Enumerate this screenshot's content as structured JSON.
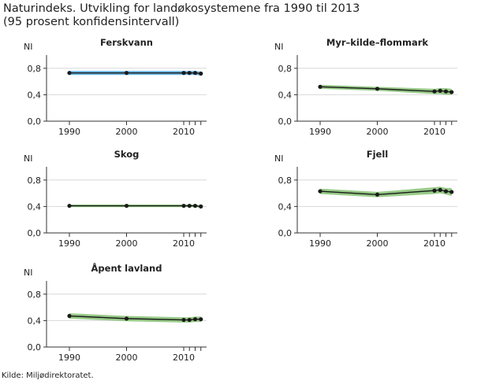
{
  "header": {
    "title_line1": "Naturindeks. Utvikling for landøkosystemene fra 1990 til 2013",
    "title_line2": "(95 prosent konfidensintervall)"
  },
  "footer": {
    "source": "Kilde: Miljødirektoratet."
  },
  "colors": {
    "ferskvann_band": "#5aaee0",
    "land_band": "#8cc47a",
    "line": "#1a1a1a",
    "grid": "#d9d9d9",
    "axis": "#333333"
  },
  "chart_data": [
    {
      "type": "line",
      "title": "Ferskvann",
      "ylabel": "NI",
      "ylim": [
        0,
        1
      ],
      "xlim": [
        1986,
        2014
      ],
      "yticks": [
        "0,0",
        "0,4",
        "0,8"
      ],
      "yticks_values": [
        0,
        0.4,
        0.8
      ],
      "xticks": [
        "1990",
        "2000",
        "2010"
      ],
      "xticks_values": [
        1990,
        2000,
        2010
      ],
      "x": [
        1990,
        2000,
        2010,
        2011,
        2012,
        2013
      ],
      "series": [
        {
          "values": [
            0.73,
            0.73,
            0.73,
            0.73,
            0.73,
            0.72
          ]
        }
      ],
      "ci_lower": [
        0.7,
        0.7,
        0.7,
        0.7,
        0.7,
        0.69
      ],
      "ci_upper": [
        0.76,
        0.76,
        0.76,
        0.76,
        0.76,
        0.75
      ],
      "band_color": "#5aaee0"
    },
    {
      "type": "line",
      "title": "Myr–kilde–flommark",
      "ylabel": "NI",
      "ylim": [
        0,
        1
      ],
      "xlim": [
        1986,
        2014
      ],
      "yticks": [
        "0,0",
        "0,4",
        "0,8"
      ],
      "yticks_values": [
        0,
        0.4,
        0.8
      ],
      "xticks": [
        "1990",
        "2000",
        "2010"
      ],
      "xticks_values": [
        1990,
        2000,
        2010
      ],
      "x": [
        1990,
        2000,
        2010,
        2011,
        2012,
        2013
      ],
      "series": [
        {
          "values": [
            0.52,
            0.49,
            0.45,
            0.46,
            0.45,
            0.44
          ]
        }
      ],
      "ci_lower": [
        0.49,
        0.46,
        0.41,
        0.41,
        0.4,
        0.4
      ],
      "ci_upper": [
        0.55,
        0.52,
        0.49,
        0.5,
        0.5,
        0.49
      ],
      "band_color": "#8cc47a"
    },
    {
      "type": "line",
      "title": "Skog",
      "ylabel": "NI",
      "ylim": [
        0,
        1
      ],
      "xlim": [
        1986,
        2014
      ],
      "yticks": [
        "0,0",
        "0,4",
        "0,8"
      ],
      "yticks_values": [
        0,
        0.4,
        0.8
      ],
      "xticks": [
        "1990",
        "2000",
        "2010"
      ],
      "xticks_values": [
        1990,
        2000,
        2010
      ],
      "x": [
        1990,
        2000,
        2010,
        2011,
        2012,
        2013
      ],
      "series": [
        {
          "values": [
            0.41,
            0.41,
            0.41,
            0.41,
            0.41,
            0.4
          ]
        }
      ],
      "ci_lower": [
        0.39,
        0.39,
        0.39,
        0.39,
        0.39,
        0.38
      ],
      "ci_upper": [
        0.43,
        0.43,
        0.43,
        0.43,
        0.43,
        0.42
      ],
      "band_color": "#8cc47a"
    },
    {
      "type": "line",
      "title": "Fjell",
      "ylabel": "NI",
      "ylim": [
        0,
        1
      ],
      "xlim": [
        1986,
        2014
      ],
      "yticks": [
        "0,0",
        "0,4",
        "0,8"
      ],
      "yticks_values": [
        0,
        0.4,
        0.8
      ],
      "xticks": [
        "1990",
        "2000",
        "2010"
      ],
      "xticks_values": [
        1990,
        2000,
        2010
      ],
      "x": [
        1990,
        2000,
        2010,
        2011,
        2012,
        2013
      ],
      "series": [
        {
          "values": [
            0.63,
            0.58,
            0.64,
            0.65,
            0.63,
            0.62
          ]
        }
      ],
      "ci_lower": [
        0.59,
        0.54,
        0.59,
        0.6,
        0.58,
        0.56
      ],
      "ci_upper": [
        0.67,
        0.62,
        0.69,
        0.7,
        0.68,
        0.68
      ],
      "band_color": "#8cc47a"
    },
    {
      "type": "line",
      "title": "Åpent lavland",
      "ylabel": "NI",
      "ylim": [
        0,
        1
      ],
      "xlim": [
        1986,
        2014
      ],
      "yticks": [
        "0,0",
        "0,4",
        "0,8"
      ],
      "yticks_values": [
        0,
        0.4,
        0.8
      ],
      "xticks": [
        "1990",
        "2000",
        "2010"
      ],
      "xticks_values": [
        1990,
        2000,
        2010
      ],
      "x": [
        1990,
        2000,
        2010,
        2011,
        2012,
        2013
      ],
      "series": [
        {
          "values": [
            0.47,
            0.43,
            0.41,
            0.41,
            0.42,
            0.42
          ]
        }
      ],
      "ci_lower": [
        0.43,
        0.39,
        0.37,
        0.37,
        0.38,
        0.38
      ],
      "ci_upper": [
        0.51,
        0.47,
        0.45,
        0.45,
        0.46,
        0.46
      ],
      "band_color": "#8cc47a"
    }
  ]
}
